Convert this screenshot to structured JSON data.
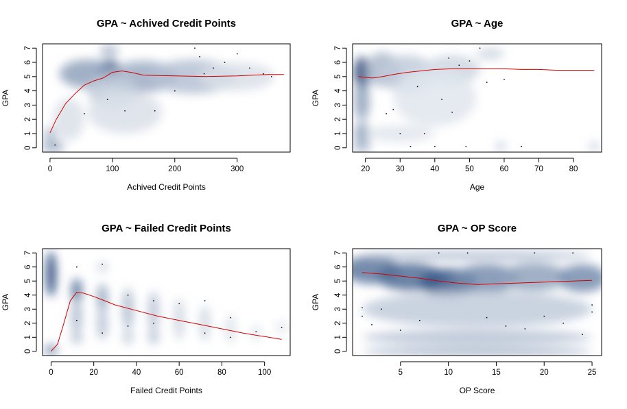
{
  "chart_data": [
    {
      "type": "scatter",
      "style": "smoothed-density",
      "title": "GPA ~ Achived Credit Points",
      "xlabel": "Achived Credit Points",
      "ylabel": "GPA",
      "xlim": [
        -12,
        385
      ],
      "ylim": [
        -0.3,
        7.3
      ],
      "xticks": [
        0,
        100,
        200,
        300
      ],
      "yticks": [
        0,
        1,
        2,
        3,
        4,
        5,
        6,
        7
      ],
      "trend_color": "#d40000",
      "trend": {
        "x": [
          0,
          10,
          25,
          40,
          55,
          70,
          85,
          100,
          115,
          130,
          150,
          200,
          250,
          300,
          350,
          375
        ],
        "y": [
          1.05,
          2.0,
          3.1,
          3.8,
          4.4,
          4.7,
          4.9,
          5.3,
          5.4,
          5.3,
          5.1,
          5.05,
          5.0,
          5.05,
          5.15,
          5.15
        ]
      },
      "blobs": [
        {
          "x": 5,
          "y": 0.1,
          "rx": 18,
          "ry": 0.35,
          "a": 0.45
        },
        {
          "x": 0,
          "y": 0.9,
          "rx": 10,
          "ry": 0.5,
          "a": 0.35
        },
        {
          "x": 95,
          "y": 5.3,
          "rx": 18,
          "ry": 0.9,
          "a": 0.9
        },
        {
          "x": 60,
          "y": 5.2,
          "rx": 45,
          "ry": 1.0,
          "a": 0.45
        },
        {
          "x": 150,
          "y": 5.0,
          "rx": 55,
          "ry": 1.1,
          "a": 0.4
        },
        {
          "x": 230,
          "y": 5.0,
          "rx": 70,
          "ry": 1.2,
          "a": 0.3
        },
        {
          "x": 100,
          "y": 4.0,
          "rx": 40,
          "ry": 1.2,
          "a": 0.25
        },
        {
          "x": 120,
          "y": 2.5,
          "rx": 60,
          "ry": 1.5,
          "a": 0.15
        },
        {
          "x": 300,
          "y": 5.0,
          "rx": 60,
          "ry": 1.0,
          "a": 0.15
        },
        {
          "x": 30,
          "y": 2.0,
          "rx": 25,
          "ry": 1.5,
          "a": 0.15
        },
        {
          "x": 95,
          "y": 6.8,
          "rx": 15,
          "ry": 0.4,
          "a": 0.35
        }
      ],
      "points": [
        {
          "x": 240,
          "y": 6.4
        },
        {
          "x": 262,
          "y": 5.6
        },
        {
          "x": 247,
          "y": 5.2
        },
        {
          "x": 280,
          "y": 6.0
        },
        {
          "x": 320,
          "y": 5.6
        },
        {
          "x": 355,
          "y": 5.0
        },
        {
          "x": 232,
          "y": 7.0
        },
        {
          "x": 342,
          "y": 5.2
        },
        {
          "x": 55,
          "y": 2.4
        },
        {
          "x": 92,
          "y": 3.4
        },
        {
          "x": 120,
          "y": 2.6
        },
        {
          "x": 168,
          "y": 2.6
        },
        {
          "x": 8,
          "y": 0.2
        },
        {
          "x": 200,
          "y": 4.0
        },
        {
          "x": 300,
          "y": 6.6
        }
      ]
    },
    {
      "type": "scatter",
      "style": "smoothed-density",
      "title": "GPA ~ Age",
      "xlabel": "Age",
      "ylabel": "GPA",
      "xlim": [
        16.3,
        88.1
      ],
      "ylim": [
        -0.3,
        7.3
      ],
      "xticks": [
        20,
        30,
        40,
        50,
        60,
        70,
        80
      ],
      "yticks": [
        0,
        1,
        2,
        3,
        4,
        5,
        6,
        7
      ],
      "trend_color": "#d40000",
      "trend": {
        "x": [
          18,
          20,
          22,
          25,
          28,
          32,
          36,
          40,
          45,
          50,
          55,
          60,
          65,
          70,
          75,
          80,
          86
        ],
        "y": [
          5.0,
          4.95,
          4.9,
          5.0,
          5.15,
          5.3,
          5.4,
          5.5,
          5.55,
          5.55,
          5.55,
          5.55,
          5.5,
          5.5,
          5.45,
          5.45,
          5.45
        ]
      },
      "blobs": [
        {
          "x": 19,
          "y": 5.2,
          "rx": 2.2,
          "ry": 1.2,
          "a": 0.95
        },
        {
          "x": 19,
          "y": 3.3,
          "rx": 2.2,
          "ry": 1.4,
          "a": 0.45
        },
        {
          "x": 19,
          "y": 1.0,
          "rx": 2.2,
          "ry": 0.8,
          "a": 0.45
        },
        {
          "x": 19,
          "y": 0.1,
          "rx": 2.5,
          "ry": 0.4,
          "a": 0.35
        },
        {
          "x": 25,
          "y": 5.5,
          "rx": 5,
          "ry": 1.2,
          "a": 0.35
        },
        {
          "x": 32,
          "y": 5.2,
          "rx": 8,
          "ry": 1.3,
          "a": 0.25
        },
        {
          "x": 45,
          "y": 5.5,
          "rx": 8,
          "ry": 1.0,
          "a": 0.2
        },
        {
          "x": 40,
          "y": 3.5,
          "rx": 12,
          "ry": 2.0,
          "a": 0.12
        },
        {
          "x": 30,
          "y": 1.0,
          "rx": 10,
          "ry": 0.6,
          "a": 0.12
        },
        {
          "x": 59,
          "y": 0.1,
          "rx": 1.5,
          "ry": 0.3,
          "a": 0.25
        },
        {
          "x": 86,
          "y": 0.1,
          "rx": 1.5,
          "ry": 0.3,
          "a": 0.25
        },
        {
          "x": 56,
          "y": 6.6,
          "rx": 4,
          "ry": 0.4,
          "a": 0.2
        }
      ],
      "points": [
        {
          "x": 26,
          "y": 2.4
        },
        {
          "x": 28,
          "y": 2.7
        },
        {
          "x": 30,
          "y": 1.0
        },
        {
          "x": 33,
          "y": 0.1
        },
        {
          "x": 37,
          "y": 1.0
        },
        {
          "x": 40,
          "y": 0.1
        },
        {
          "x": 42,
          "y": 3.4
        },
        {
          "x": 45,
          "y": 2.5
        },
        {
          "x": 44,
          "y": 6.3
        },
        {
          "x": 47,
          "y": 5.8
        },
        {
          "x": 50,
          "y": 6.1
        },
        {
          "x": 53,
          "y": 7.0
        },
        {
          "x": 55,
          "y": 4.6
        },
        {
          "x": 65,
          "y": 0.1
        },
        {
          "x": 60,
          "y": 4.8
        },
        {
          "x": 49,
          "y": 0.1
        },
        {
          "x": 35,
          "y": 4.3
        }
      ]
    },
    {
      "type": "scatter",
      "style": "smoothed-density",
      "title": "GPA ~ Failed Credit Points",
      "xlabel": "Failed Credit Points",
      "ylabel": "GPA",
      "xlim": [
        -4,
        112
      ],
      "ylim": [
        -0.3,
        7.3
      ],
      "xticks": [
        0,
        20,
        40,
        60,
        80,
        100
      ],
      "yticks": [
        0,
        1,
        2,
        3,
        4,
        5,
        6,
        7
      ],
      "trend_color": "#d40000",
      "trend": {
        "x": [
          0,
          3,
          6,
          9,
          12,
          15,
          20,
          25,
          30,
          40,
          50,
          60,
          70,
          80,
          90,
          100,
          108
        ],
        "y": [
          0.0,
          0.5,
          2.0,
          3.6,
          4.2,
          4.15,
          3.9,
          3.6,
          3.3,
          2.9,
          2.5,
          2.2,
          1.9,
          1.6,
          1.3,
          1.05,
          0.85
        ]
      },
      "blobs": [
        {
          "x": 0,
          "y": 5.5,
          "rx": 2.2,
          "ry": 1.6,
          "a": 1.0
        },
        {
          "x": 0,
          "y": 0.1,
          "rx": 3,
          "ry": 0.4,
          "a": 0.55
        },
        {
          "x": 12,
          "y": 4.3,
          "rx": 2.5,
          "ry": 0.9,
          "a": 0.7
        },
        {
          "x": 12,
          "y": 2.5,
          "rx": 2.5,
          "ry": 1.2,
          "a": 0.35
        },
        {
          "x": 12,
          "y": 1.0,
          "rx": 2.5,
          "ry": 0.5,
          "a": 0.3
        },
        {
          "x": 24,
          "y": 3.8,
          "rx": 2.5,
          "ry": 1.0,
          "a": 0.45
        },
        {
          "x": 24,
          "y": 2.0,
          "rx": 2.5,
          "ry": 1.2,
          "a": 0.3
        },
        {
          "x": 24,
          "y": 6.0,
          "rx": 2.5,
          "ry": 0.4,
          "a": 0.2
        },
        {
          "x": 36,
          "y": 3.0,
          "rx": 2.5,
          "ry": 1.5,
          "a": 0.35
        },
        {
          "x": 36,
          "y": 1.0,
          "rx": 2.5,
          "ry": 0.5,
          "a": 0.25
        },
        {
          "x": 48,
          "y": 2.8,
          "rx": 2.5,
          "ry": 1.5,
          "a": 0.3
        },
        {
          "x": 48,
          "y": 1.0,
          "rx": 2.5,
          "ry": 0.5,
          "a": 0.3
        },
        {
          "x": 60,
          "y": 2.3,
          "rx": 2.5,
          "ry": 1.5,
          "a": 0.2
        },
        {
          "x": 72,
          "y": 2.0,
          "rx": 2.5,
          "ry": 1.3,
          "a": 0.2
        },
        {
          "x": 84,
          "y": 1.6,
          "rx": 2.5,
          "ry": 1.0,
          "a": 0.15
        },
        {
          "x": 96,
          "y": 1.3,
          "rx": 2.5,
          "ry": 0.6,
          "a": 0.12
        },
        {
          "x": 108,
          "y": 1.7,
          "rx": 2.5,
          "ry": 0.5,
          "a": 0.12
        }
      ],
      "points": [
        {
          "x": 12,
          "y": 6.0
        },
        {
          "x": 12,
          "y": 2.2
        },
        {
          "x": 24,
          "y": 6.2
        },
        {
          "x": 24,
          "y": 1.3
        },
        {
          "x": 36,
          "y": 4.0
        },
        {
          "x": 36,
          "y": 1.8
        },
        {
          "x": 48,
          "y": 3.6
        },
        {
          "x": 48,
          "y": 2.0
        },
        {
          "x": 60,
          "y": 3.4
        },
        {
          "x": 72,
          "y": 3.6
        },
        {
          "x": 72,
          "y": 1.3
        },
        {
          "x": 84,
          "y": 2.4
        },
        {
          "x": 84,
          "y": 1.0
        },
        {
          "x": 96,
          "y": 1.4
        },
        {
          "x": 108,
          "y": 1.7
        }
      ]
    },
    {
      "type": "scatter",
      "style": "smoothed-density",
      "title": "GPA ~ OP Score",
      "xlabel": "OP Score",
      "ylabel": "GPA",
      "xlim": [
        0,
        26
      ],
      "ylim": [
        -0.3,
        7.3
      ],
      "xticks": [
        5,
        10,
        15,
        20,
        25
      ],
      "yticks": [
        0,
        1,
        2,
        3,
        4,
        5,
        6,
        7
      ],
      "trend_color": "#d40000",
      "trend": {
        "x": [
          1,
          3,
          5,
          7,
          9,
          11,
          13,
          15,
          17,
          19,
          21,
          23,
          25
        ],
        "y": [
          5.6,
          5.5,
          5.35,
          5.2,
          5.0,
          4.85,
          4.75,
          4.8,
          4.85,
          4.9,
          4.95,
          5.0,
          5.05
        ]
      },
      "blobs": [
        {
          "x": 2,
          "y": 5.8,
          "rx": 3,
          "ry": 1.0,
          "a": 0.65
        },
        {
          "x": 6,
          "y": 5.3,
          "rx": 3.5,
          "ry": 1.0,
          "a": 0.7
        },
        {
          "x": 10,
          "y": 4.9,
          "rx": 3,
          "ry": 1.0,
          "a": 0.8
        },
        {
          "x": 14,
          "y": 5.2,
          "rx": 3.5,
          "ry": 1.0,
          "a": 0.55
        },
        {
          "x": 19,
          "y": 5.3,
          "rx": 3.5,
          "ry": 1.0,
          "a": 0.45
        },
        {
          "x": 24,
          "y": 5.2,
          "rx": 2.5,
          "ry": 1.0,
          "a": 0.55
        },
        {
          "x": 13,
          "y": 3.0,
          "rx": 12,
          "ry": 1.3,
          "a": 0.25
        },
        {
          "x": 13,
          "y": 1.0,
          "rx": 12,
          "ry": 0.5,
          "a": 0.3
        },
        {
          "x": 13,
          "y": 0.0,
          "rx": 12,
          "ry": 0.35,
          "a": 0.35
        },
        {
          "x": 13,
          "y": 6.8,
          "rx": 12,
          "ry": 0.35,
          "a": 0.3
        }
      ],
      "points": [
        {
          "x": 1,
          "y": 3.1
        },
        {
          "x": 1,
          "y": 2.5
        },
        {
          "x": 2,
          "y": 1.9
        },
        {
          "x": 3,
          "y": 3.0
        },
        {
          "x": 5,
          "y": 1.5
        },
        {
          "x": 7,
          "y": 2.2
        },
        {
          "x": 9,
          "y": 7.0
        },
        {
          "x": 12,
          "y": 7.0
        },
        {
          "x": 16,
          "y": 1.8
        },
        {
          "x": 18,
          "y": 1.6
        },
        {
          "x": 19,
          "y": 7.0
        },
        {
          "x": 20,
          "y": 2.5
        },
        {
          "x": 22,
          "y": 2.0
        },
        {
          "x": 23,
          "y": 7.0
        },
        {
          "x": 25,
          "y": 3.3
        },
        {
          "x": 25,
          "y": 2.8
        },
        {
          "x": 24,
          "y": 1.2
        },
        {
          "x": 14,
          "y": 2.4
        }
      ]
    }
  ]
}
